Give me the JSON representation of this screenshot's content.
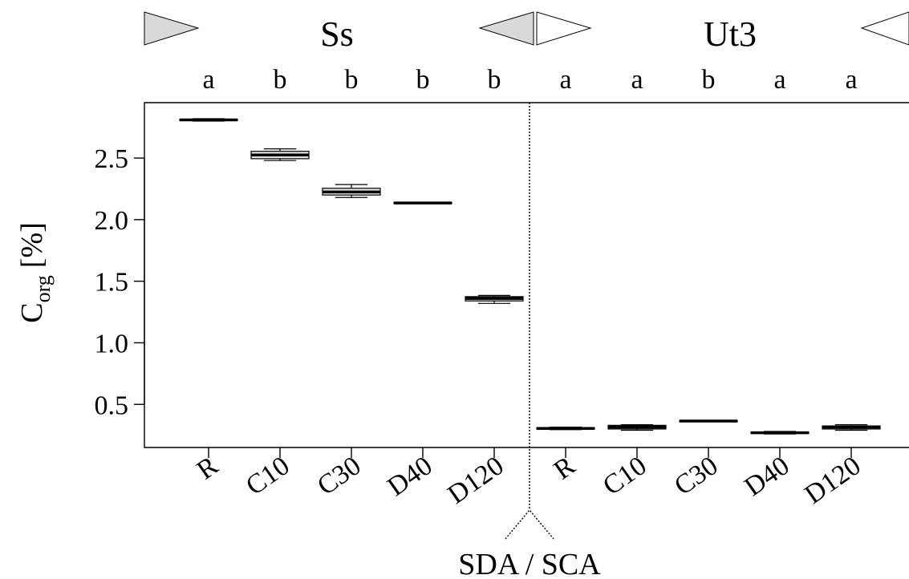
{
  "chart_data": {
    "type": "boxplot",
    "ylabel_main": "C",
    "ylabel_sub": "org",
    "ylabel_unit": "[%]",
    "ylim": [
      0.15,
      2.95
    ],
    "yticks": [
      0.5,
      1.0,
      1.5,
      2.0,
      2.5
    ],
    "ytick_labels": [
      "0.5",
      "1.0",
      "1.5",
      "2.0",
      "2.5"
    ],
    "divider_label": "SDA / SCA",
    "groups": [
      {
        "name": "Ss",
        "categories": [
          "R",
          "C10",
          "C30",
          "D40",
          "D120"
        ],
        "letters": [
          "a",
          "b",
          "b",
          "b",
          "b"
        ],
        "boxes": [
          {
            "min": 2.8,
            "q1": 2.805,
            "median": 2.81,
            "q3": 2.815,
            "max": 2.82
          },
          {
            "min": 2.48,
            "q1": 2.495,
            "median": 2.525,
            "q3": 2.555,
            "max": 2.575
          },
          {
            "min": 2.18,
            "q1": 2.2,
            "median": 2.225,
            "q3": 2.255,
            "max": 2.285
          },
          {
            "min": 2.13,
            "q1": 2.13,
            "median": 2.135,
            "q3": 2.14,
            "max": 2.14
          },
          {
            "min": 1.32,
            "q1": 1.34,
            "median": 1.36,
            "q3": 1.375,
            "max": 1.385
          }
        ]
      },
      {
        "name": "Ut3",
        "categories": [
          "R",
          "C10",
          "C30",
          "D40",
          "D120"
        ],
        "letters": [
          "a",
          "a",
          "b",
          "a",
          "a"
        ],
        "boxes": [
          {
            "min": 0.295,
            "q1": 0.3,
            "median": 0.305,
            "q3": 0.31,
            "max": 0.315
          },
          {
            "min": 0.29,
            "q1": 0.3,
            "median": 0.315,
            "q3": 0.33,
            "max": 0.335
          },
          {
            "min": 0.36,
            "q1": 0.362,
            "median": 0.365,
            "q3": 0.368,
            "max": 0.37
          },
          {
            "min": 0.26,
            "q1": 0.265,
            "median": 0.27,
            "q3": 0.275,
            "max": 0.28
          },
          {
            "min": 0.29,
            "q1": 0.3,
            "median": 0.315,
            "q3": 0.325,
            "max": 0.335
          }
        ]
      }
    ],
    "colors": {
      "box_fill": "#e2e2e2",
      "stroke": "#000000",
      "triangle_fill_ss": "#d9d9d9",
      "triangle_fill_ut3": "#ffffff"
    }
  }
}
